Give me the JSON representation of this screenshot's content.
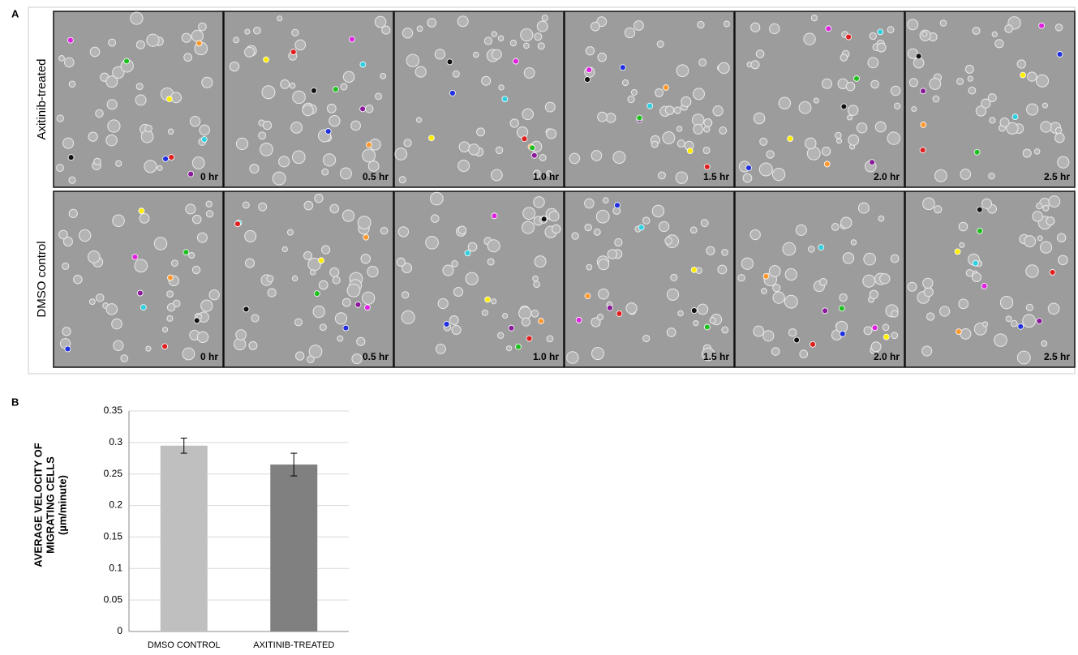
{
  "panel_a": {
    "label": "A",
    "rows": [
      {
        "name": "Axitinib-treated",
        "time_labels": [
          "0 hr",
          "0.5 hr",
          "1.0 hr",
          "1.5 hr",
          "2.0 hr",
          "2.5 hr"
        ]
      },
      {
        "name": "DMSO control",
        "time_labels": [
          "0 hr",
          "0.5 hr",
          "1.0 hr",
          "1.5 hr",
          "2.0 hr",
          "2.5 hr"
        ]
      }
    ]
  },
  "panel_b": {
    "label": "B"
  },
  "chart_data": {
    "type": "bar",
    "y_label": [
      "AVERAGE VELOCITY OF",
      "MIGRATING CELLS",
      "(µm/minute)"
    ],
    "categories": [
      "DMSO CONTROL",
      "AXITINIB-TREATED"
    ],
    "values": [
      0.295,
      0.265
    ],
    "errors": [
      0.012,
      0.018
    ],
    "colors": [
      "#bfbfbf",
      "#808080"
    ],
    "ylim": [
      0,
      0.35
    ],
    "yticks": [
      0,
      0.05,
      0.1,
      0.15,
      0.2,
      0.25,
      0.3,
      0.35
    ],
    "grid": true
  }
}
